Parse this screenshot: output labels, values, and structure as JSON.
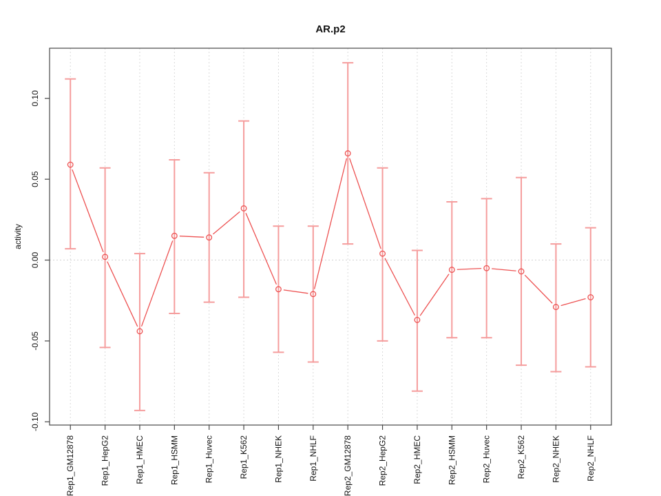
{
  "chart_data": {
    "type": "line",
    "title": "AR.p2",
    "xlabel": "",
    "ylabel": "activity",
    "legend": "none",
    "point_style": "open-circle",
    "series_name": "activity",
    "categories": [
      "Rep1_GM12878",
      "Rep1_HepG2",
      "Rep1_HMEC",
      "Rep1_HSMM",
      "Rep1_Huvec",
      "Rep1_K562",
      "Rep1_NHEK",
      "Rep1_NHLF",
      "Rep2_GM12878",
      "Rep2_HepG2",
      "Rep2_HMEC",
      "Rep2_HSMM",
      "Rep2_Huvec",
      "Rep2_K562",
      "Rep2_NHEK",
      "Rep2_NHLF"
    ],
    "values": [
      0.059,
      0.002,
      -0.044,
      0.015,
      0.014,
      0.032,
      -0.018,
      -0.021,
      0.066,
      0.004,
      -0.037,
      -0.006,
      -0.005,
      -0.007,
      -0.029,
      -0.023
    ],
    "error_high": [
      0.112,
      0.057,
      0.004,
      0.062,
      0.054,
      0.086,
      0.021,
      0.021,
      0.122,
      0.057,
      0.006,
      0.036,
      0.038,
      0.051,
      0.01,
      0.02
    ],
    "error_low": [
      0.007,
      -0.054,
      -0.093,
      -0.033,
      -0.026,
      -0.023,
      -0.057,
      -0.063,
      0.01,
      -0.05,
      -0.081,
      -0.048,
      -0.048,
      -0.065,
      -0.069,
      -0.066
    ],
    "ylim": [
      -0.102,
      0.131
    ],
    "yticks": [
      0.1,
      0.05,
      0.0,
      -0.05,
      -0.1
    ],
    "ytick_labels": [
      "0.10",
      "0.05",
      "0.00",
      "-0.05",
      "-0.10"
    ],
    "grid": {
      "vertical_gridlines": "light gray dashed at each category",
      "zero_line": "light gray dotted horizontal at y=0"
    },
    "colors": {
      "line": "#ed5151",
      "point": "#ed5151",
      "error_bar": "#f59c9c",
      "grid": "#d9d9d9",
      "zero_line": "#d0d0d0",
      "axis": "#454545",
      "text": "#111111",
      "background": "#ffffff"
    }
  }
}
